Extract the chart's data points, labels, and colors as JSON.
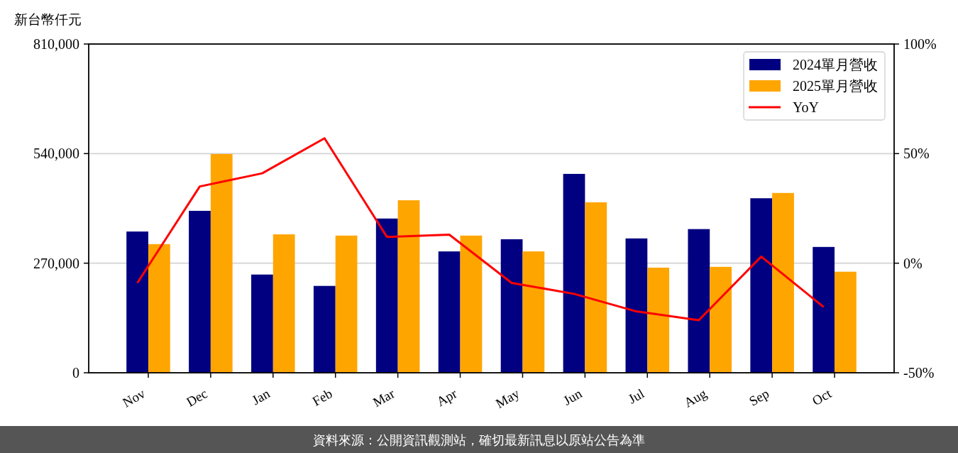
{
  "chart_data": {
    "type": "bar",
    "ylabel": "新台幣仟元",
    "categories": [
      "Nov",
      "Dec",
      "Jan",
      "Feb",
      "Mar",
      "Apr",
      "May",
      "Jun",
      "Jul",
      "Aug",
      "Sep",
      "Oct"
    ],
    "series": [
      {
        "name": "2024單月營收",
        "color": "#000080",
        "values": [
          348000,
          399000,
          242000,
          214000,
          380000,
          299000,
          329000,
          490000,
          331000,
          354000,
          430000,
          310000
        ]
      },
      {
        "name": "2025單月營收",
        "color": "#ffa500",
        "values": [
          317000,
          539000,
          341000,
          338000,
          425000,
          338000,
          299000,
          420000,
          259000,
          261000,
          443000,
          249000
        ]
      },
      {
        "name": "YoY",
        "type": "line",
        "axis": "y2",
        "color": "#ff0000",
        "values": [
          -9,
          35,
          41,
          57,
          12,
          13,
          -9,
          -14,
          -22,
          -26,
          3,
          -20
        ]
      }
    ],
    "ylim": [
      0,
      810000
    ],
    "yticks": [
      0,
      {
        "value": 270000,
        "label": "270,000"
      },
      {
        "value": 540000,
        "label": "540,000"
      },
      {
        "value": 810000,
        "label": "810,000"
      }
    ],
    "y2lim": [
      -50,
      100
    ],
    "y2ticks": [
      {
        "value": -50,
        "label": "-50%"
      },
      {
        "value": 0,
        "label": "0%"
      },
      {
        "value": 50,
        "label": "50%"
      },
      {
        "value": 100,
        "label": "100%"
      }
    ],
    "grid": "y",
    "legend": "top right",
    "line_style": "solid",
    "annotations": [
      "資料來源：公開資訊觀測站，確切最新訊息以原站公告為準"
    ]
  }
}
